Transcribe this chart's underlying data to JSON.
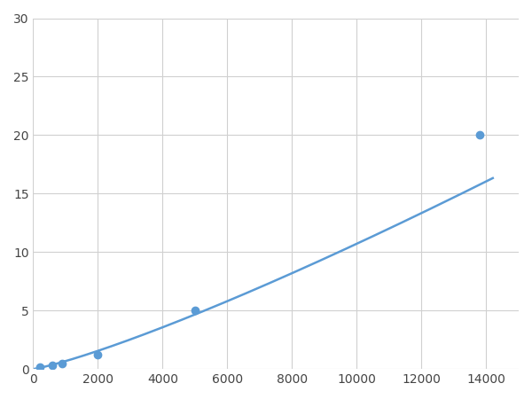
{
  "x_data": [
    200,
    600,
    900,
    2000,
    5000,
    13800
  ],
  "y_data": [
    0.15,
    0.3,
    0.45,
    1.2,
    5.0,
    20.0
  ],
  "line_color": "#5b9bd5",
  "marker_color": "#5b9bd5",
  "marker_style": "o",
  "marker_size": 6,
  "line_width": 1.8,
  "xlim": [
    0,
    15000
  ],
  "ylim": [
    0,
    30
  ],
  "xticks": [
    0,
    2000,
    4000,
    6000,
    8000,
    10000,
    12000,
    14000
  ],
  "yticks": [
    0,
    5,
    10,
    15,
    20,
    25,
    30
  ],
  "grid": true,
  "background_color": "#ffffff",
  "figsize": [
    6.0,
    4.5
  ],
  "dpi": 100
}
